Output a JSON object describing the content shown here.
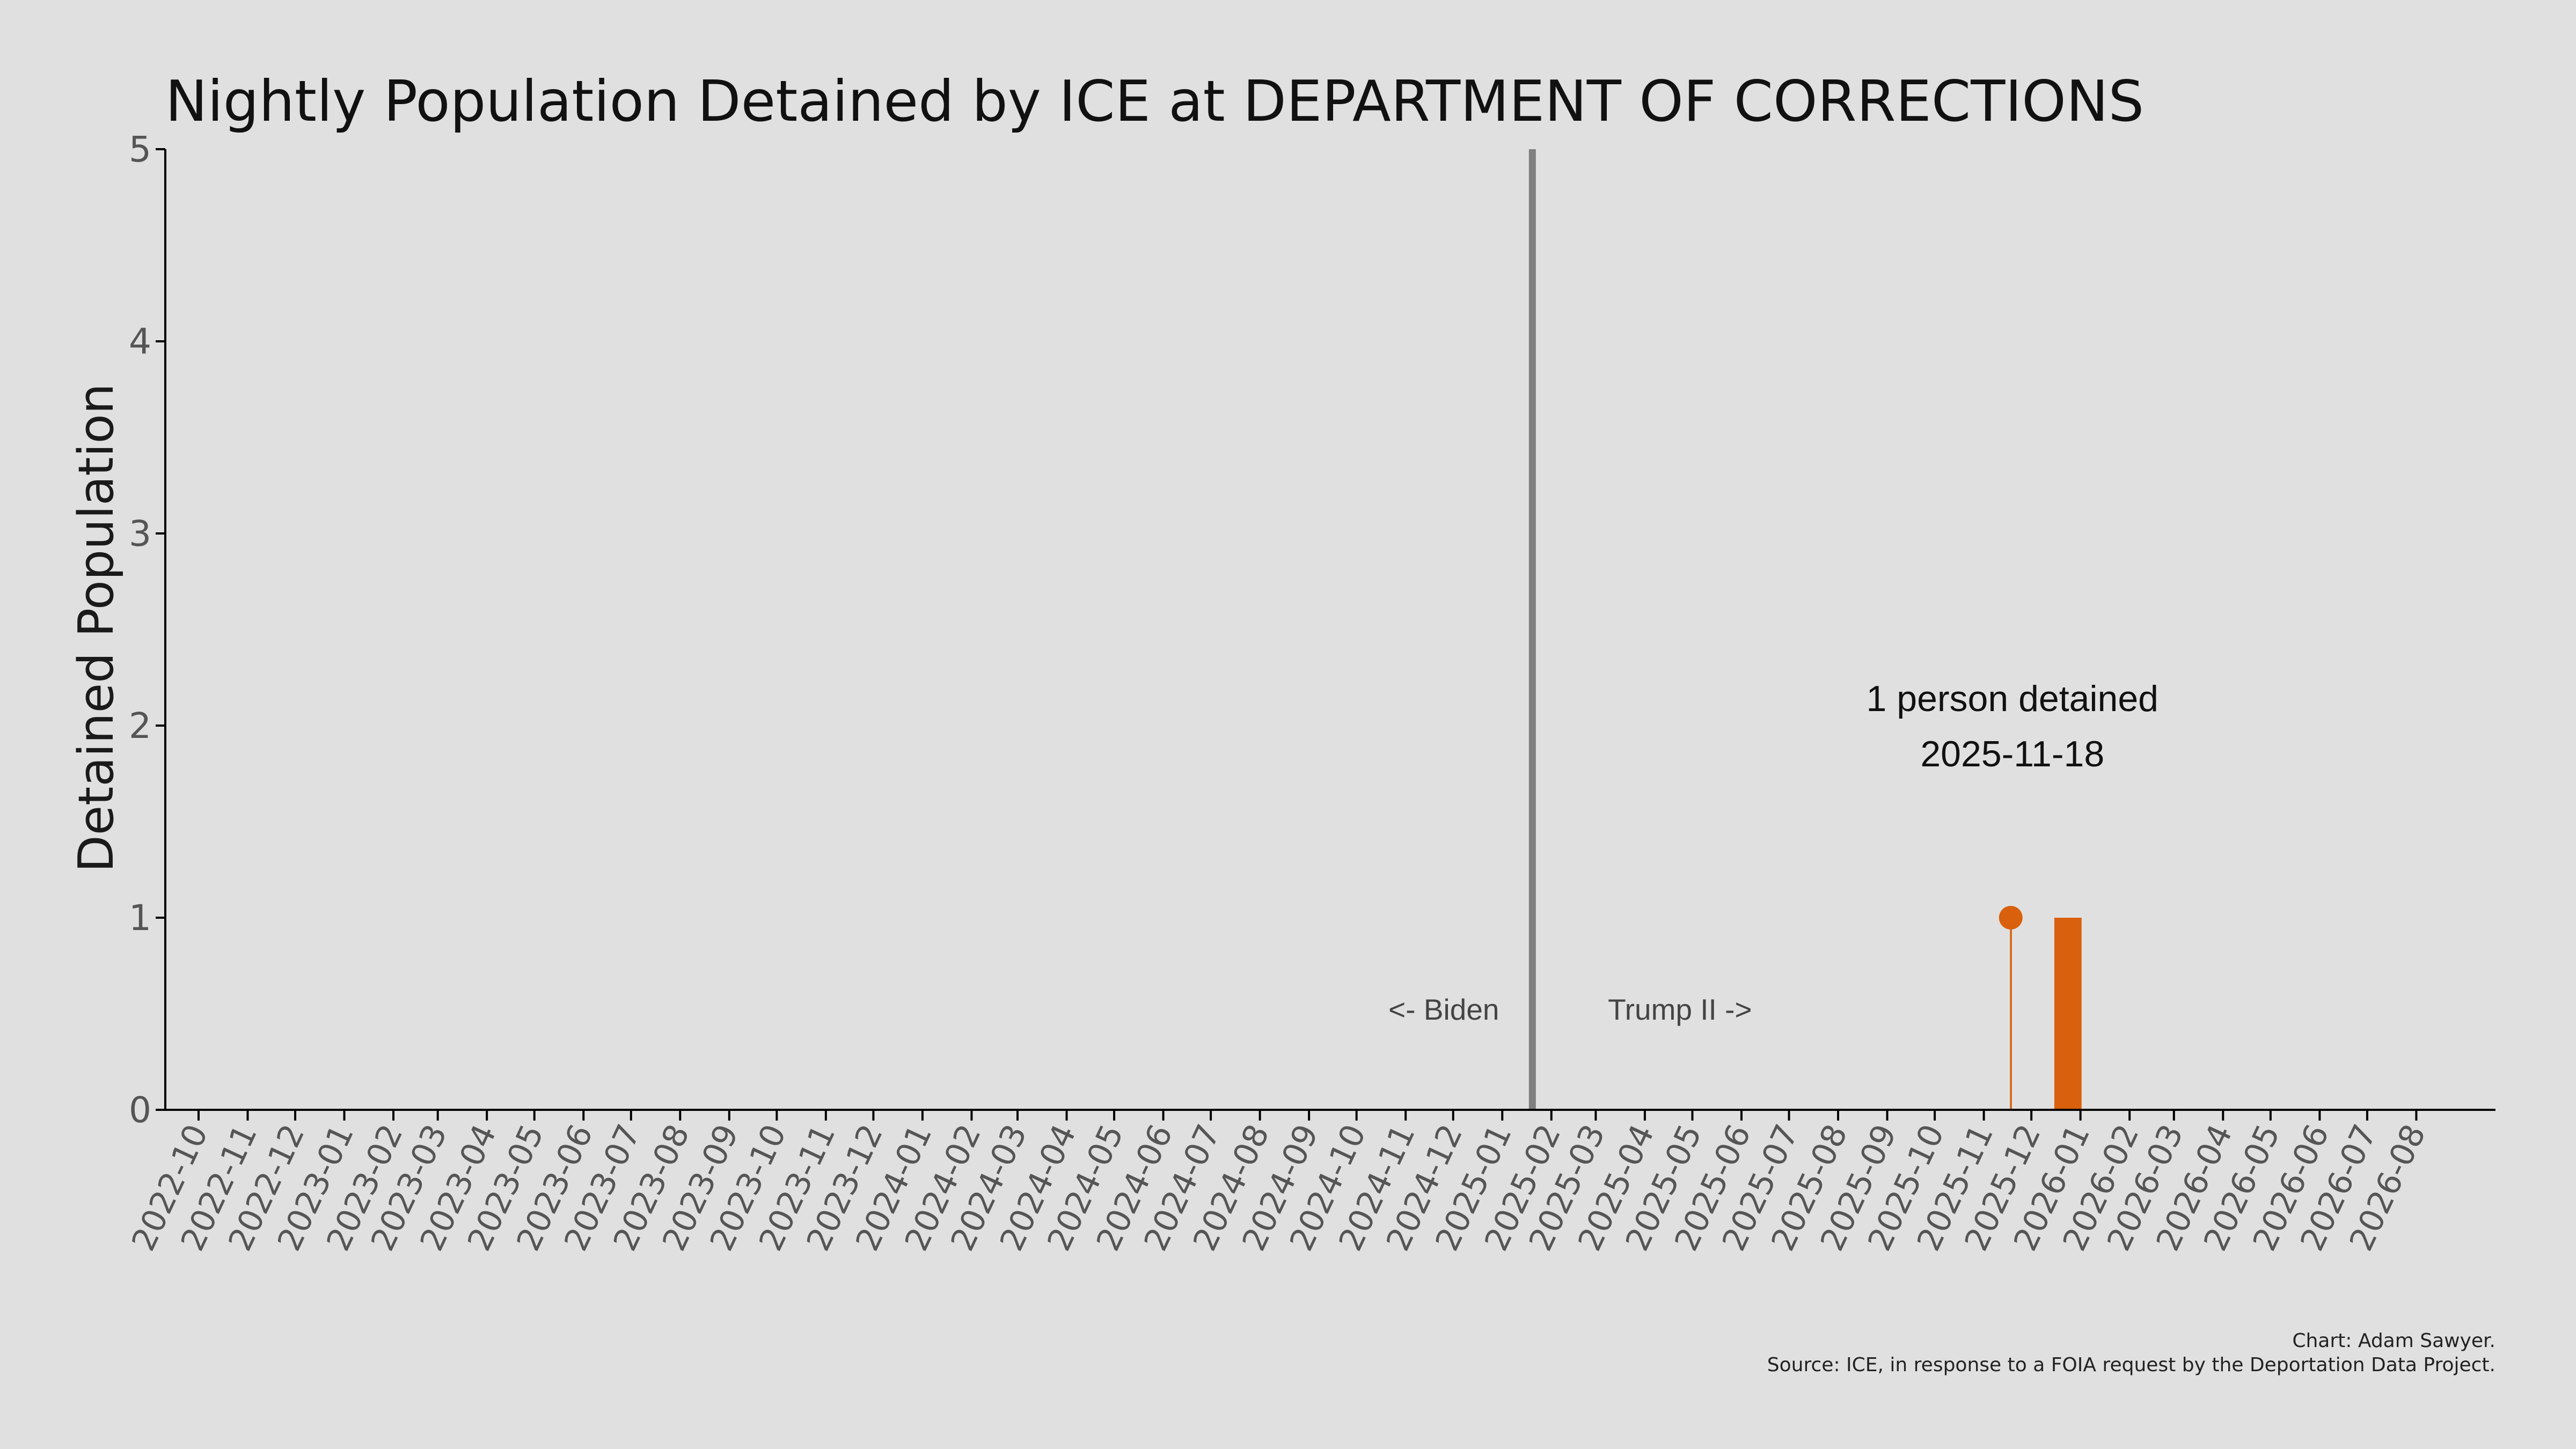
{
  "chart_data": {
    "type": "bar",
    "title": "Nightly Population Detained by ICE at DEPARTMENT OF CORRECTIONS",
    "xlabel": "",
    "ylabel": "Detained Population",
    "ylim": [
      0,
      5
    ],
    "yticks": [
      "0",
      "1",
      "2",
      "3",
      "4",
      "5"
    ],
    "xlim": [
      "2022-09-10",
      "2026-09-20"
    ],
    "xticks": [
      "2022-10",
      "2022-11",
      "2022-12",
      "2023-01",
      "2023-02",
      "2023-03",
      "2023-04",
      "2023-05",
      "2023-06",
      "2023-07",
      "2023-08",
      "2023-09",
      "2023-10",
      "2023-11",
      "2023-12",
      "2024-01",
      "2024-02",
      "2024-03",
      "2024-04",
      "2024-05",
      "2024-06",
      "2024-07",
      "2024-08",
      "2024-09",
      "2024-10",
      "2024-11",
      "2024-12",
      "2025-01",
      "2025-02",
      "2025-03",
      "2025-04",
      "2025-05",
      "2025-06",
      "2025-07",
      "2025-08",
      "2025-09",
      "2025-10",
      "2025-11",
      "2025-12",
      "2026-01",
      "2026-02",
      "2026-03",
      "2026-04",
      "2026-05",
      "2026-06",
      "2026-07",
      "2026-08"
    ],
    "grid": false,
    "legend": "none",
    "series": [
      {
        "color": "#d9600c",
        "points": [
          {
            "x": "2025-11-18",
            "y": 1
          },
          {
            "x": "2025-12-16",
            "y": 1
          },
          {
            "x": "2025-12-17",
            "y": 1
          },
          {
            "x": "2025-12-18",
            "y": 1
          },
          {
            "x": "2025-12-19",
            "y": 1
          },
          {
            "x": "2025-12-20",
            "y": 1
          },
          {
            "x": "2025-12-21",
            "y": 1
          },
          {
            "x": "2025-12-22",
            "y": 1
          },
          {
            "x": "2025-12-23",
            "y": 1
          },
          {
            "x": "2025-12-24",
            "y": 1
          },
          {
            "x": "2025-12-25",
            "y": 1
          },
          {
            "x": "2025-12-26",
            "y": 1
          },
          {
            "x": "2025-12-27",
            "y": 1
          },
          {
            "x": "2025-12-28",
            "y": 1
          },
          {
            "x": "2025-12-29",
            "y": 1
          },
          {
            "x": "2025-12-30",
            "y": 1
          },
          {
            "x": "2025-12-31",
            "y": 1
          },
          {
            "x": "2026-01-01",
            "y": 1
          }
        ]
      }
    ],
    "highlight_point": {
      "x": "2025-11-18",
      "y": 1
    },
    "annotation": {
      "line1": "1 person detained",
      "line2": "2025-11-18"
    },
    "divider": {
      "x": "2025-01-20",
      "color": "#808080"
    },
    "era_labels": {
      "left": "<- Biden",
      "right": "Trump II ->"
    },
    "credit": {
      "line1": "Chart: Adam Sawyer.",
      "line2": "Source: ICE, in response to a FOIA request by the Deportation Data Project."
    }
  },
  "colors": {
    "background": "#e0e0e0",
    "bar": "#d9600c",
    "divider": "#808080",
    "axis": "#000000"
  }
}
